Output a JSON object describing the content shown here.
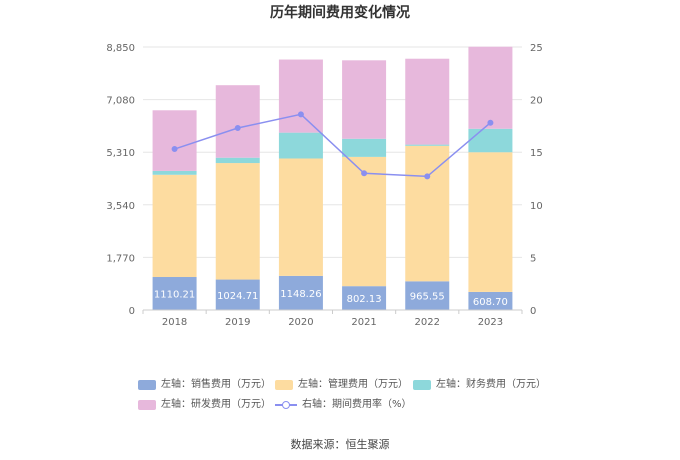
{
  "chart_data": {
    "type": "bar",
    "stacked": true,
    "title": "历年期间费用变化情况",
    "categories": [
      "2018",
      "2019",
      "2020",
      "2021",
      "2022",
      "2023"
    ],
    "left_axis": {
      "ticks": [
        "0",
        "1,770",
        "3,540",
        "5,310",
        "7,080",
        "8,850"
      ],
      "range": [
        0,
        8850
      ]
    },
    "right_axis": {
      "ticks": [
        "0",
        "5",
        "10",
        "15",
        "20",
        "25"
      ],
      "range": [
        0,
        25
      ]
    },
    "series": [
      {
        "name": "左轴：销售费用（万元）",
        "color": "#8eaadb",
        "values": [
          1110.21,
          1024.71,
          1148.26,
          802.13,
          965.55,
          608.7
        ],
        "labels": [
          "1110.21",
          "1024.71",
          "1148.26",
          "802.13",
          "965.55",
          "608.70"
        ]
      },
      {
        "name": "左轴：管理费用（万元）",
        "color": "#fddca0",
        "values": [
          3440,
          3920,
          3950,
          4350,
          4560,
          4700
        ]
      },
      {
        "name": "左轴：财务费用（万元）",
        "color": "#8dd8db",
        "values": [
          130,
          180,
          870,
          610,
          40,
          790
        ]
      },
      {
        "name": "左轴：研发费用（万元）",
        "color": "#e7b8dc",
        "values": [
          2040,
          2440,
          2460,
          2640,
          2890,
          2760
        ]
      }
    ],
    "line_series": {
      "name": "右轴：期间费用率（%）",
      "color": "#8a8ff0",
      "values": [
        15.3,
        17.3,
        18.6,
        13.0,
        12.7,
        17.8
      ]
    }
  },
  "source": "数据来源：恒生聚源"
}
